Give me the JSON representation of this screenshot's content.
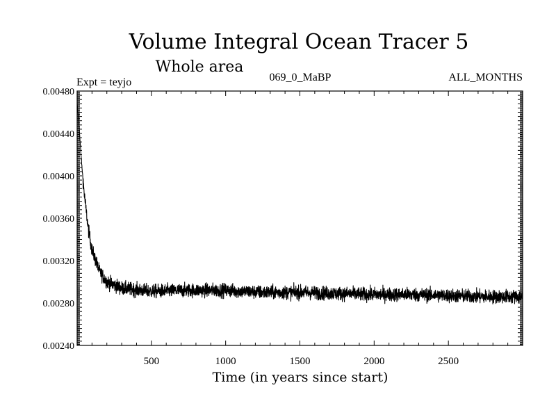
{
  "chart_data": {
    "type": "line",
    "title": "Volume Integral Ocean Tracer 5",
    "subtitle": "Whole area",
    "annotations": {
      "left": "Expt = teyjo",
      "center": "069_0_MaBP",
      "right": "ALL_MONTHS"
    },
    "xlabel": "Time (in years since start)",
    "ylabel": "",
    "xlim": [
      0,
      3000
    ],
    "ylim": [
      0.0024,
      0.0048
    ],
    "x_ticks": [
      500,
      1000,
      1500,
      2000,
      2500
    ],
    "x_tick_labels": [
      "500",
      "1000",
      "1500",
      "2000",
      "2500"
    ],
    "y_ticks": [
      0.0024,
      0.0028,
      0.0032,
      0.0036,
      0.004,
      0.0044,
      0.0048
    ],
    "y_tick_labels": [
      "0.00240",
      "0.00280",
      "0.00320",
      "0.00360",
      "0.00400",
      "0.00440",
      "0.00480"
    ],
    "grid": false,
    "series": [
      {
        "name": "Ocean Tracer 5 volume integral",
        "color": "#000000",
        "x": [
          0,
          10,
          20,
          30,
          50,
          75,
          100,
          150,
          200,
          300,
          500,
          750,
          1000,
          1250,
          1500,
          1750,
          2000,
          2250,
          2500,
          2750,
          3000
        ],
        "values": [
          0.00468,
          0.00452,
          0.00432,
          0.00412,
          0.0038,
          0.0035,
          0.0033,
          0.0031,
          0.003,
          0.00294,
          0.00291,
          0.00292,
          0.00292,
          0.0029,
          0.0029,
          0.00289,
          0.00288,
          0.00288,
          0.00287,
          0.00286,
          0.00286
        ],
        "noise_amplitude": 7e-05,
        "sampling": "annual (approx. 3000 points), noisy around trend"
      }
    ]
  }
}
